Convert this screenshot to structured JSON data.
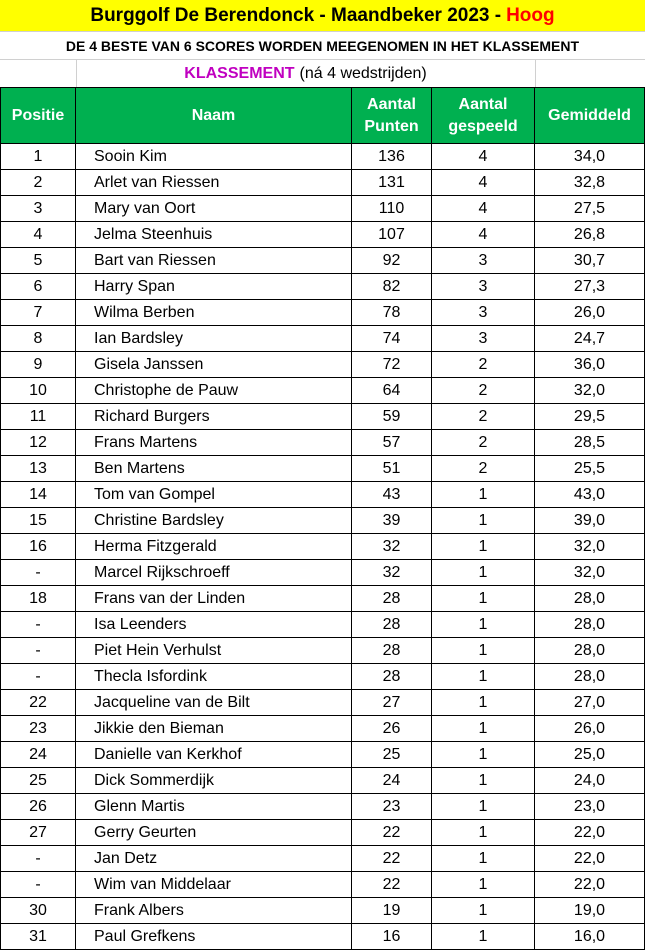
{
  "title": {
    "main": "Burggolf De Berendonck - Maandbeker 2023 -",
    "highlight": "Hoog"
  },
  "subtitle": "DE 4 BESTE VAN 6 SCORES WORDEN MEEGENOMEN IN HET KLASSEMENT",
  "klassement": {
    "label": "KLASSEMENT",
    "note": "(ná 4 wedstrijden)"
  },
  "colors": {
    "title_bg": "#ffff00",
    "header_bg": "#00b050",
    "accent": "#c000c0",
    "highlight": "#ff0000"
  },
  "headers": [
    "Positie",
    "Naam",
    "Aantal Punten",
    "Aantal gespeeld",
    "Gemiddeld"
  ],
  "rows": [
    [
      "1",
      "Sooin Kim",
      "136",
      "4",
      "34,0"
    ],
    [
      "2",
      "Arlet van Riessen",
      "131",
      "4",
      "32,8"
    ],
    [
      "3",
      "Mary van Oort",
      "110",
      "4",
      "27,5"
    ],
    [
      "4",
      "Jelma Steenhuis",
      "107",
      "4",
      "26,8"
    ],
    [
      "5",
      "Bart van Riessen",
      "92",
      "3",
      "30,7"
    ],
    [
      "6",
      "Harry Span",
      "82",
      "3",
      "27,3"
    ],
    [
      "7",
      "Wilma Berben",
      "78",
      "3",
      "26,0"
    ],
    [
      "8",
      "Ian Bardsley",
      "74",
      "3",
      "24,7"
    ],
    [
      "9",
      "Gisela Janssen",
      "72",
      "2",
      "36,0"
    ],
    [
      "10",
      "Christophe de Pauw",
      "64",
      "2",
      "32,0"
    ],
    [
      "11",
      "Richard Burgers",
      "59",
      "2",
      "29,5"
    ],
    [
      "12",
      "Frans Martens",
      "57",
      "2",
      "28,5"
    ],
    [
      "13",
      "Ben Martens",
      "51",
      "2",
      "25,5"
    ],
    [
      "14",
      "Tom van Gompel",
      "43",
      "1",
      "43,0"
    ],
    [
      "15",
      "Christine Bardsley",
      "39",
      "1",
      "39,0"
    ],
    [
      "16",
      "Herma Fitzgerald",
      "32",
      "1",
      "32,0"
    ],
    [
      "-",
      "Marcel Rijkschroeff",
      "32",
      "1",
      "32,0"
    ],
    [
      "18",
      "Frans van der Linden",
      "28",
      "1",
      "28,0"
    ],
    [
      "-",
      "Isa Leenders",
      "28",
      "1",
      "28,0"
    ],
    [
      "-",
      "Piet Hein Verhulst",
      "28",
      "1",
      "28,0"
    ],
    [
      "-",
      "Thecla Isfordink",
      "28",
      "1",
      "28,0"
    ],
    [
      "22",
      "Jacqueline van de Bilt",
      "27",
      "1",
      "27,0"
    ],
    [
      "23",
      "Jikkie den Bieman",
      "26",
      "1",
      "26,0"
    ],
    [
      "24",
      "Danielle van Kerkhof",
      "25",
      "1",
      "25,0"
    ],
    [
      "25",
      "Dick Sommerdijk",
      "24",
      "1",
      "24,0"
    ],
    [
      "26",
      "Glenn Martis",
      "23",
      "1",
      "23,0"
    ],
    [
      "27",
      "Gerry Geurten",
      "22",
      "1",
      "22,0"
    ],
    [
      "-",
      "Jan Detz",
      "22",
      "1",
      "22,0"
    ],
    [
      "-",
      "Wim van Middelaar",
      "22",
      "1",
      "22,0"
    ],
    [
      "30",
      "Frank Albers",
      "19",
      "1",
      "19,0"
    ],
    [
      "31",
      "Paul Grefkens",
      "16",
      "1",
      "16,0"
    ]
  ]
}
